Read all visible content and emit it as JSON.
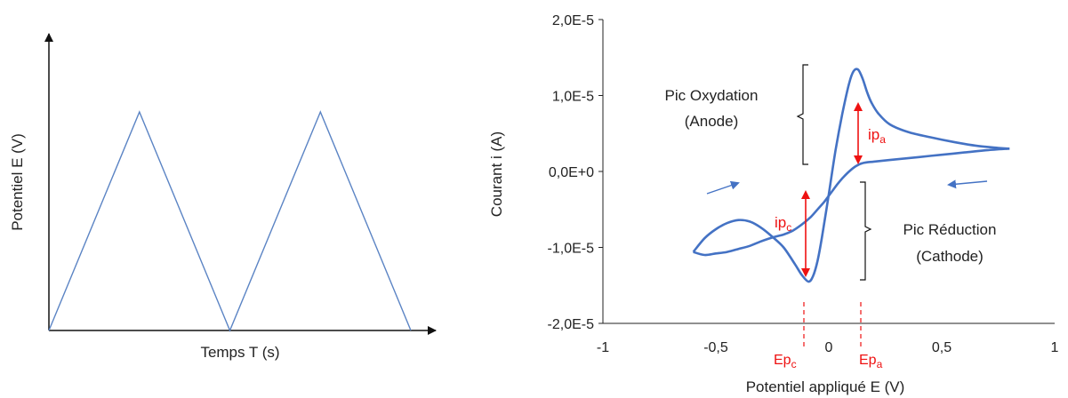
{
  "chart_data": [
    {
      "type": "line",
      "xlabel": "Temps T (s)",
      "ylabel": "Potentiel E (V)",
      "x": [
        0,
        1,
        2,
        3,
        4
      ],
      "y": [
        0,
        1,
        0,
        1,
        0
      ],
      "grid": false,
      "series_color": "#5b84c4"
    },
    {
      "type": "line",
      "xlabel": "Potentiel appliqué E (V)",
      "ylabel": "Courant i (A)",
      "xlim": [
        -1,
        1
      ],
      "ylim": [
        -2e-05,
        2e-05
      ],
      "x_ticks": [
        "-1",
        "-0,5",
        "0",
        "0,5",
        "1"
      ],
      "y_ticks": [
        "-2,0E-5",
        "-1,0E-5",
        "0,0E+0",
        "1,0E-5",
        "2,0E-5"
      ],
      "grid": false,
      "series_color": "#4472c4",
      "annotation_color": "#e11",
      "forward_scan": {
        "x": [
          -0.6,
          -0.55,
          -0.5,
          -0.45,
          -0.4,
          -0.35,
          -0.3,
          -0.25,
          -0.2,
          -0.15,
          -0.12,
          -0.09,
          -0.07,
          -0.05,
          -0.03,
          0.0,
          0.03,
          0.06,
          0.09,
          0.11,
          0.13,
          0.15,
          0.17,
          0.19,
          0.22,
          0.27,
          0.35,
          0.45,
          0.55,
          0.65,
          0.75,
          0.8
        ],
        "y": [
          -1.06e-05,
          -8.8e-06,
          -7.6e-06,
          -6.8e-06,
          -6.4e-06,
          -6.6e-06,
          -7.4e-06,
          -8.6e-06,
          -1e-05,
          -1.22e-05,
          -1.36e-05,
          -1.45e-05,
          -1.38e-05,
          -1.18e-05,
          -8.6e-06,
          -3e-06,
          2.8e-06,
          7.6e-06,
          1.16e-05,
          1.32e-05,
          1.34e-05,
          1.22e-05,
          1.04e-05,
          9e-06,
          7.6e-06,
          6.2e-06,
          5.2e-06,
          4.5e-06,
          3.9e-06,
          3.4e-06,
          3.1e-06,
          3e-06
        ]
      },
      "reverse_scan": {
        "x": [
          0.8,
          0.7,
          0.6,
          0.5,
          0.4,
          0.3,
          0.2,
          0.15,
          0.12,
          0.09,
          0.06,
          0.04,
          0.02,
          0.0,
          -0.02,
          -0.05,
          -0.08,
          -0.12,
          -0.16,
          -0.2,
          -0.25,
          -0.3,
          -0.35,
          -0.4,
          -0.45,
          -0.5,
          -0.55,
          -0.6
        ],
        "y": [
          3e-06,
          2.8e-06,
          2.5e-06,
          2.2e-06,
          1.9e-06,
          1.6e-06,
          1.3e-06,
          1.1e-06,
          7e-07,
          0.0,
          -9e-07,
          -1.6e-06,
          -2.4e-06,
          -3.2e-06,
          -4e-06,
          -5e-06,
          -6e-06,
          -7e-06,
          -7.8e-06,
          -8.3e-06,
          -8.7e-06,
          -9.2e-06,
          -9.8e-06,
          -1.02e-05,
          -1.06e-05,
          -1.08e-05,
          -1.1e-05,
          -1.06e-05
        ]
      },
      "annotations": {
        "oxidation": [
          "Pic Oxydation",
          "(Anode)"
        ],
        "reduction": [
          "Pic Réduction",
          "(Cathode)"
        ],
        "ipa": {
          "base": "ip",
          "sub": "a"
        },
        "ipc": {
          "base": "ip",
          "sub": "c"
        },
        "epa": {
          "base": "Ep",
          "sub": "a"
        },
        "epc": {
          "base": "Ep",
          "sub": "c"
        }
      }
    }
  ]
}
